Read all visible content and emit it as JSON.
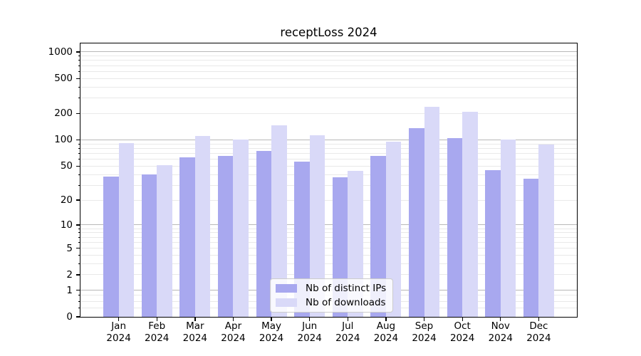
{
  "chart_data": {
    "type": "bar",
    "title": "receptLoss 2024",
    "categories": [
      "Jan 2024",
      "Feb 2024",
      "Mar 2024",
      "Apr 2024",
      "May 2024",
      "Jun 2024",
      "Jul 2024",
      "Aug 2024",
      "Sep 2024",
      "Oct 2024",
      "Nov 2024",
      "Dec 2024"
    ],
    "x_tick_line1": [
      "Jan",
      "Feb",
      "Mar",
      "Apr",
      "May",
      "Jun",
      "Jul",
      "Aug",
      "Sep",
      "Oct",
      "Nov",
      "Dec"
    ],
    "x_tick_line2": "2024",
    "series": [
      {
        "name": "Nb of distinct IPs",
        "color": "#a8a8ef",
        "values": [
          38,
          40,
          63,
          65,
          75,
          56,
          37,
          65,
          135,
          105,
          45,
          36
        ]
      },
      {
        "name": "Nb of downloads",
        "color": "#d9d9f8",
        "values": [
          92,
          51,
          110,
          100,
          148,
          113,
          44,
          96,
          240,
          210,
          100,
          88
        ]
      }
    ],
    "yscale": "log1p",
    "ylim": [
      0,
      1250
    ],
    "y_tick_labels": [
      "0",
      "1",
      "2",
      "5",
      "10",
      "20",
      "50",
      "100",
      "200",
      "500",
      "1000"
    ],
    "y_major_gridlines": [
      1,
      10,
      100,
      1000
    ],
    "y_minor_gridlines": [
      0.25,
      0.5,
      0.75,
      2,
      3,
      4,
      5,
      6,
      7,
      8,
      9,
      20,
      30,
      40,
      50,
      60,
      70,
      80,
      90,
      200,
      300,
      400,
      500,
      600,
      700,
      800,
      900
    ],
    "grid": true,
    "legend_position": "lower center",
    "colors": {
      "bar_distinct_ips": "#a8a8ef",
      "bar_downloads": "#d9d9f8",
      "grid_major": "#b8b8b8",
      "grid_minor": "#e9e9e9",
      "axis": "#000000",
      "text": "#000000",
      "legend_border": "#cccccc"
    }
  }
}
